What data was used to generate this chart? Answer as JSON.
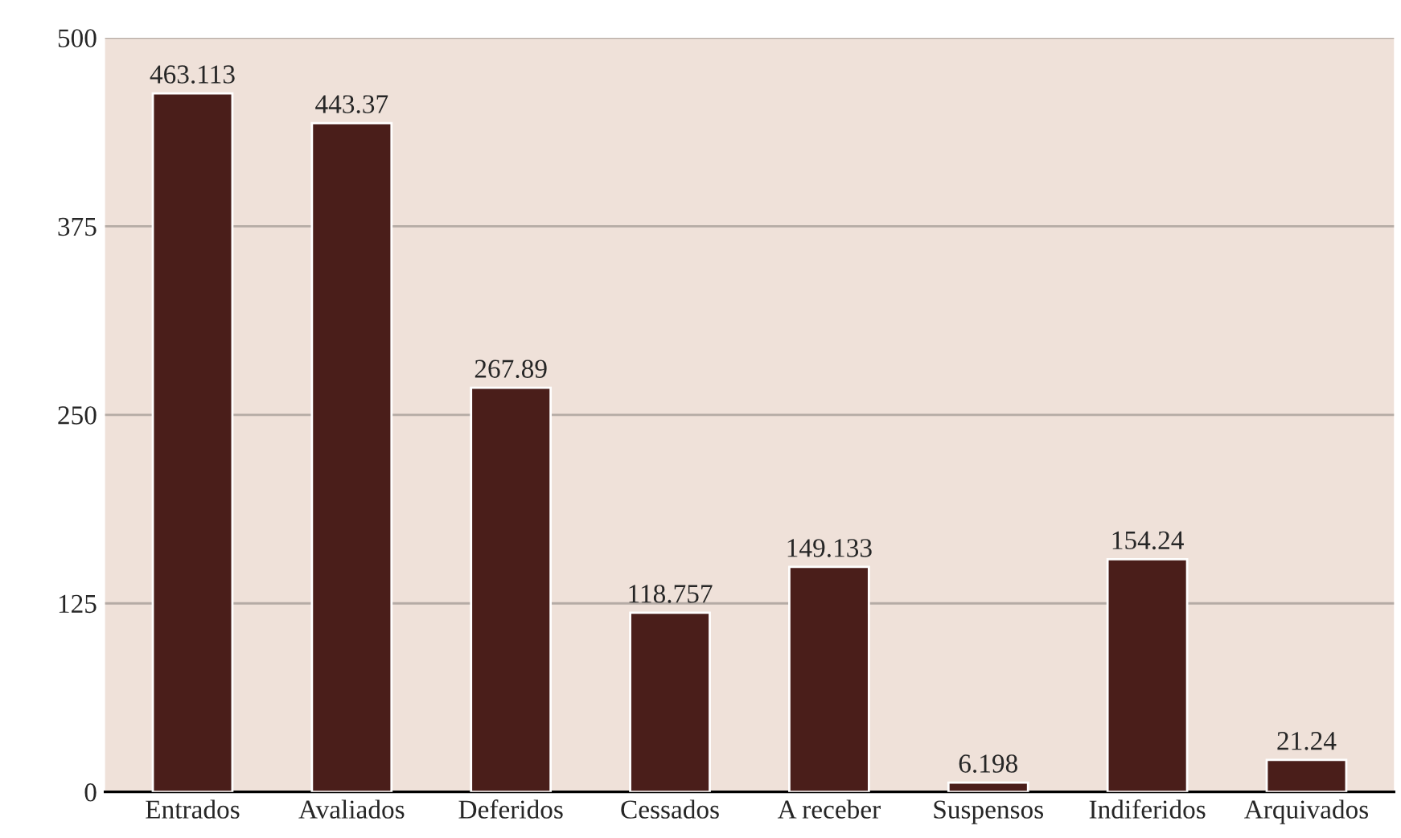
{
  "chart_data": {
    "type": "bar",
    "categories": [
      "Entrados",
      "Avaliados",
      "Deferidos",
      "Cessados",
      "A receber",
      "Suspensos",
      "Indiferidos",
      "Arquivados"
    ],
    "values": [
      463.113,
      443.37,
      267.89,
      118.757,
      149.133,
      6.198,
      154.24,
      21.24
    ],
    "color": "#4a1e1a",
    "ylim": [
      0,
      500
    ],
    "yticks": [
      0,
      125,
      250,
      375,
      500
    ],
    "grid": "y",
    "data_labels": true
  }
}
